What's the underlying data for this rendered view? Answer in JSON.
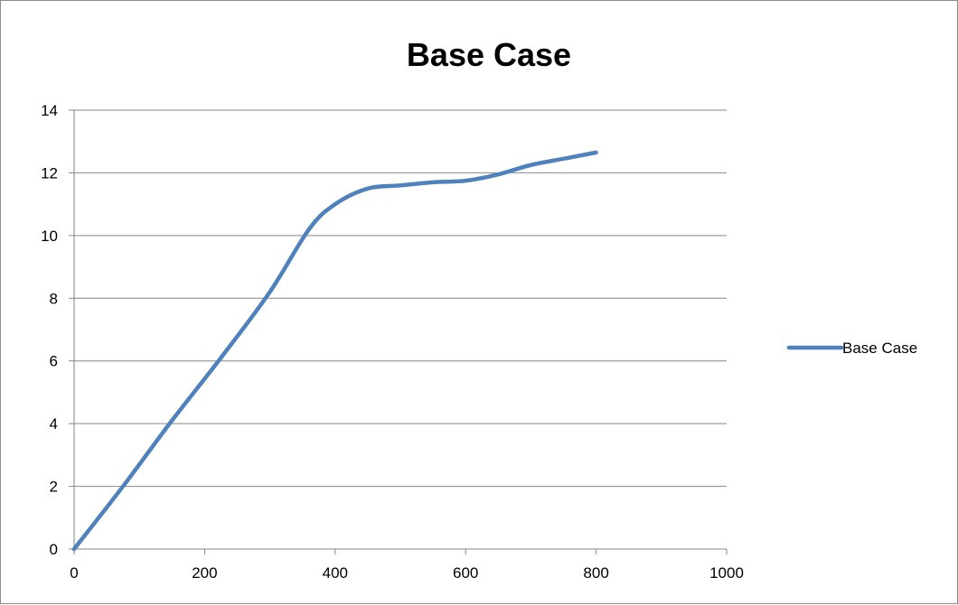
{
  "chart_data": {
    "type": "line",
    "title": "Base Case",
    "xlabel": "",
    "ylabel": "",
    "xlim": [
      0,
      1000
    ],
    "ylim": [
      0,
      14
    ],
    "x_ticks": [
      0,
      200,
      400,
      600,
      800,
      1000
    ],
    "y_ticks": [
      0,
      2,
      4,
      6,
      8,
      10,
      12,
      14
    ],
    "x_tick_labels": [
      "0",
      "200",
      "400",
      "600",
      "800",
      "1000"
    ],
    "y_tick_labels": [
      "0",
      "2",
      "4",
      "6",
      "8",
      "10",
      "12",
      "14"
    ],
    "grid": "horizontal",
    "legend_position": "right",
    "series": [
      {
        "name": "Base Case",
        "color": "#4f81bd",
        "x": [
          0,
          75,
          150,
          225,
          300,
          360,
          400,
          450,
          500,
          550,
          600,
          650,
          700,
          750,
          800
        ],
        "y": [
          0,
          2.0,
          4.1,
          6.1,
          8.2,
          10.2,
          11.0,
          11.5,
          11.6,
          11.7,
          11.75,
          11.95,
          12.25,
          12.45,
          12.65
        ]
      }
    ]
  }
}
